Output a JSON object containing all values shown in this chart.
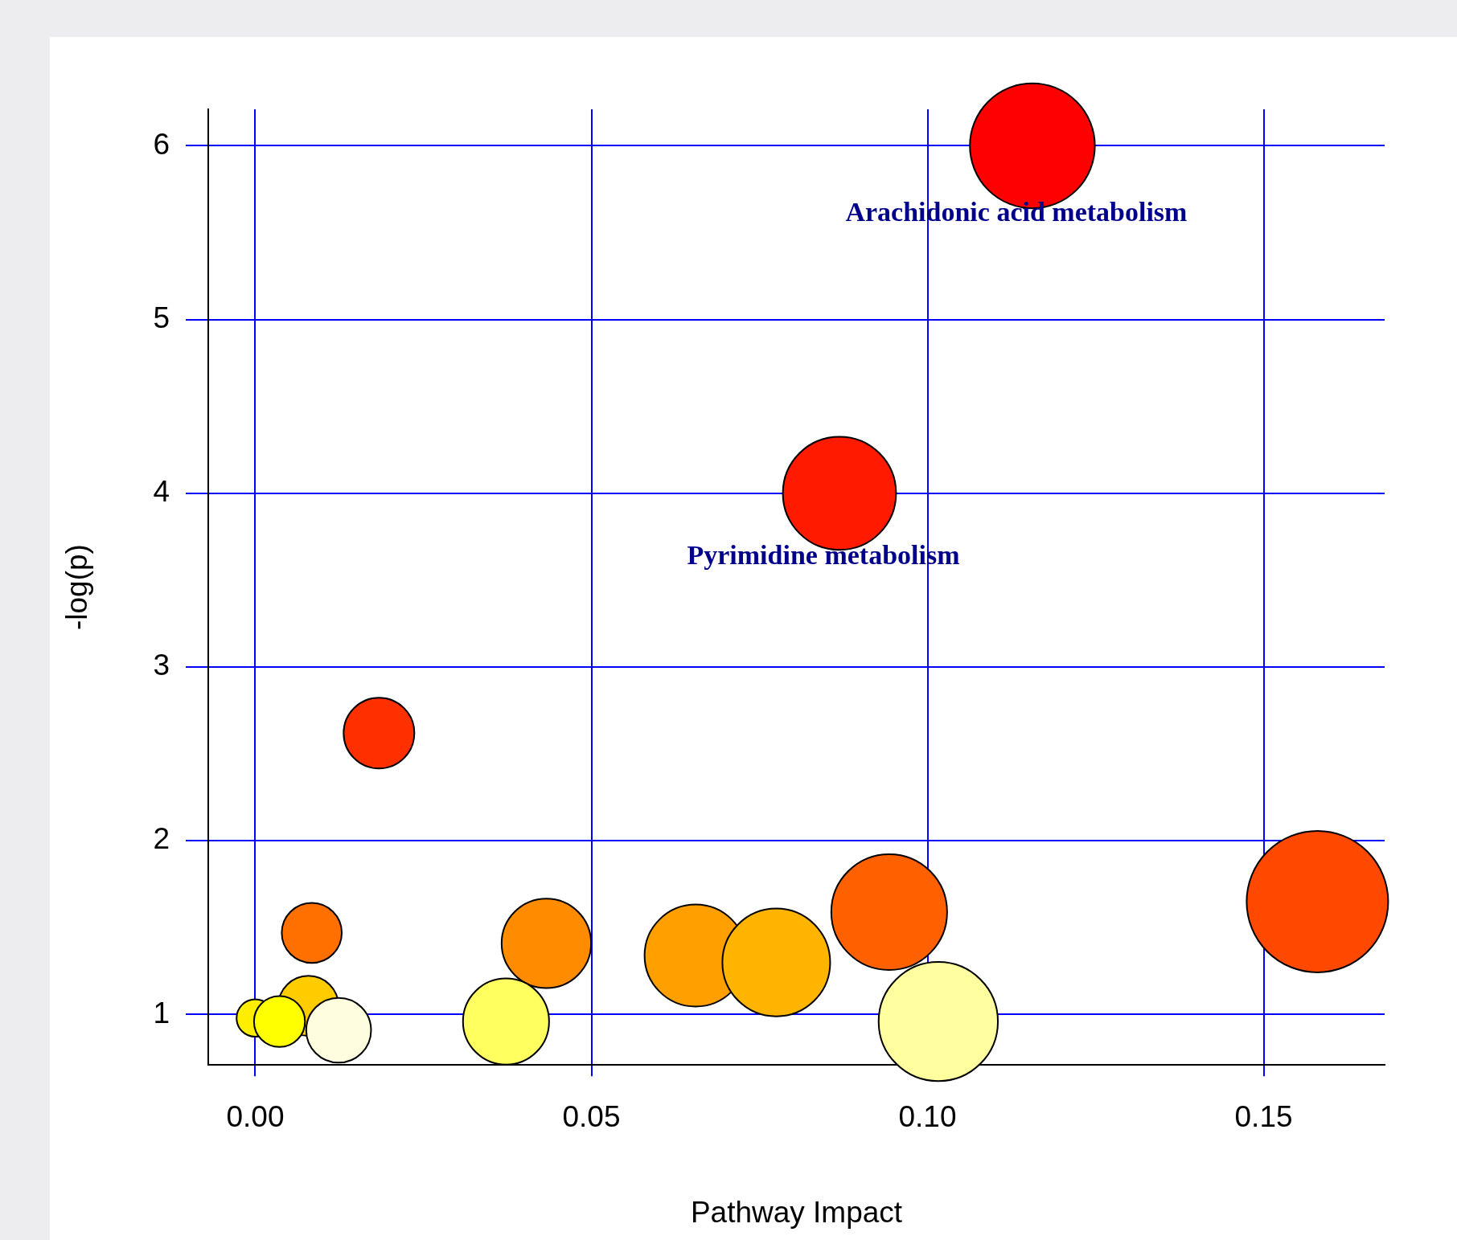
{
  "chart_data": {
    "type": "bubble",
    "xlabel": "Pathway Impact",
    "ylabel": "-log(p)",
    "x": [
      0.1156,
      0.0869,
      0.0184,
      0.158,
      0.0943,
      0.0084,
      0.0433,
      0.0655,
      0.0775,
      0.0079,
      0.0,
      0.0036,
      0.0124,
      0.0373,
      0.1016
    ],
    "values": [
      6.0,
      4.0,
      2.62,
      1.65,
      1.59,
      1.47,
      1.41,
      1.34,
      1.3,
      1.05,
      0.98,
      0.96,
      0.91,
      0.96,
      0.96
    ],
    "sizes": [
      0.78,
      0.64,
      0.25,
      1,
      0.67,
      0.18,
      0.4,
      0.52,
      0.58,
      0.18,
      0.07,
      0.13,
      0.21,
      0.37,
      0.71
    ],
    "colors": [
      "#ff0000",
      "#ff1a00",
      "#ff3000",
      "#ff4800",
      "#ff6000",
      "#ff7000",
      "#ff8c00",
      "#ffa000",
      "#ffb400",
      "#ffcc00",
      "#ffee00",
      "#ffff00",
      "#fffde0",
      "#ffff60",
      "#ffffa0"
    ],
    "xlim": [
      -0.007,
      0.168
    ],
    "ylim": [
      0.71,
      6.21
    ],
    "xticks": [
      {
        "value": 0,
        "label": "0.00"
      },
      {
        "value": 0.05,
        "label": "0.05"
      },
      {
        "value": 0.1,
        "label": "0.10"
      },
      {
        "value": 0.15,
        "label": "0.15"
      }
    ],
    "yticks": [
      1,
      2,
      3,
      4,
      5,
      6
    ],
    "grid": true,
    "legend": false,
    "annotations": [
      {
        "text": "Arachidonic acid metabolism",
        "x": 0.1156,
        "y": 6.0
      },
      {
        "text": "Pyrimidine metabolism",
        "x": 0.0869,
        "y": 4.0
      }
    ]
  }
}
